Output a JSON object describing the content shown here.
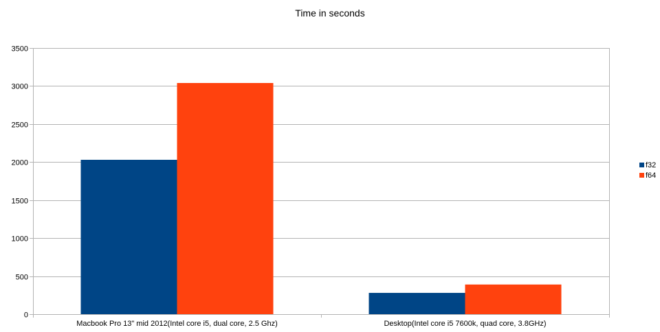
{
  "chart_data": {
    "type": "bar",
    "title": "Time in seconds",
    "xlabel": "",
    "ylabel": "",
    "categories": [
      "Macbook Pro 13\" mid 2012(Intel core i5, dual core, 2.5 Ghz)",
      "Desktop(Intel core i5 7600k, quad core, 3.8GHz)"
    ],
    "series": [
      {
        "name": "f32",
        "color": "#004586",
        "values": [
          2030,
          280
        ]
      },
      {
        "name": "f64",
        "color": "#ff420e",
        "values": [
          3040,
          390
        ]
      }
    ],
    "ylim": [
      0,
      3500
    ],
    "yticks": [
      0,
      500,
      1000,
      1500,
      2000,
      2500,
      3000,
      3500
    ],
    "grid": true,
    "legend": "right"
  }
}
